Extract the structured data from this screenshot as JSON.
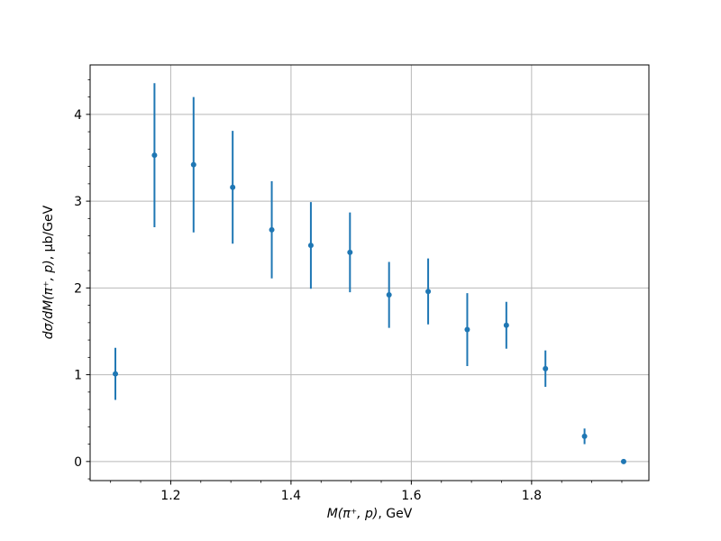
{
  "chart_data": {
    "type": "scatter",
    "style": "errorbar",
    "title": "",
    "xlabel": "M(π⁺, p), GeV",
    "xlabel_math": "M(π⁺, p)",
    "xlabel_unit": ", GeV",
    "ylabel": "dσ/dM(π⁺, p), μb/GeV",
    "ylabel_math": "dσ/dM(π⁺, p)",
    "ylabel_unit": ", μb/GeV",
    "xlim": [
      1.066,
      1.995
    ],
    "ylim": [
      -0.22,
      4.57
    ],
    "grid": true,
    "legend": false,
    "xticks": {
      "major": [
        1.2,
        1.4,
        1.6,
        1.8
      ],
      "labels": [
        "1.2",
        "1.4",
        "1.6",
        "1.8"
      ],
      "minor_step": 0.05
    },
    "yticks": {
      "major": [
        0,
        1,
        2,
        3,
        4
      ],
      "labels": [
        "0",
        "1",
        "2",
        "3",
        "4"
      ],
      "minor_step": 0.2
    },
    "colors": {
      "marker": "#1f77b4",
      "grid": "#b8b8b8",
      "spine": "#000000",
      "background": "#ffffff"
    },
    "series": [
      {
        "x": [
          1.108,
          1.173,
          1.238,
          1.303,
          1.368,
          1.433,
          1.498,
          1.563,
          1.628,
          1.693,
          1.758,
          1.823,
          1.888,
          1.953
        ],
        "y": [
          1.01,
          3.53,
          3.42,
          3.16,
          2.67,
          2.49,
          2.41,
          1.92,
          1.96,
          1.52,
          1.57,
          1.07,
          0.29,
          0.0
        ],
        "yerr": [
          0.3,
          0.83,
          0.78,
          0.65,
          0.56,
          0.5,
          0.46,
          0.38,
          0.38,
          0.42,
          0.27,
          0.21,
          0.09,
          0.02
        ]
      }
    ]
  }
}
